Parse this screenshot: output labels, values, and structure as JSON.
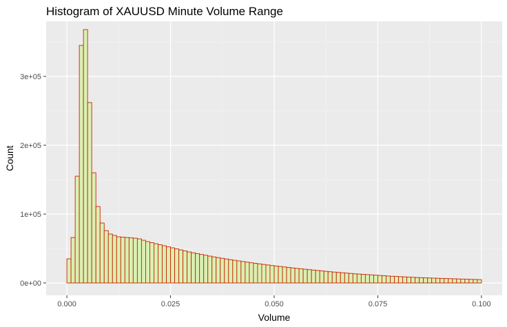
{
  "chart_data": {
    "type": "bar",
    "title": "Histogram of XAUUSD Minute Volume Range",
    "xlabel": "Volume",
    "ylabel": "Count",
    "xlim": [
      -0.005,
      0.105
    ],
    "ylim": [
      -18000,
      380000
    ],
    "x_ticks": [
      0.0,
      0.025,
      0.05,
      0.075,
      0.1
    ],
    "x_tick_labels": [
      "0.000",
      "0.025",
      "0.050",
      "0.075",
      "0.100"
    ],
    "y_ticks": [
      0,
      100000,
      200000,
      300000
    ],
    "y_tick_labels": [
      "0e+00",
      "1e+05",
      "2e+05",
      "3e+05"
    ],
    "grid": true,
    "legend": "none",
    "bin_width": 0.001,
    "bins_start": 0.0,
    "values": [
      35000,
      66000,
      155000,
      345000,
      368000,
      262000,
      160000,
      111000,
      87000,
      76000,
      71000,
      69000,
      67000,
      66500,
      66000,
      65500,
      65000,
      64000,
      62000,
      60000,
      58500,
      57000,
      55500,
      54000,
      52500,
      51000,
      49500,
      48000,
      46500,
      45000,
      43800,
      42600,
      41400,
      40200,
      39000,
      37800,
      36800,
      35800,
      34800,
      33800,
      32900,
      32000,
      31100,
      30200,
      29300,
      28500,
      27700,
      26900,
      26100,
      25300,
      24600,
      23900,
      23200,
      22500,
      21800,
      21100,
      20500,
      19900,
      19300,
      18700,
      18100,
      17500,
      16900,
      16300,
      15800,
      15300,
      14800,
      14300,
      13800,
      13300,
      12900,
      12500,
      12100,
      11700,
      11300,
      10900,
      10500,
      10100,
      9700,
      9400,
      9100,
      8800,
      8500,
      8200,
      7900,
      7600,
      7400,
      7200,
      7000,
      6800,
      6600,
      6400,
      6200,
      6000,
      5800,
      5600,
      5400,
      5200,
      5000,
      4800
    ],
    "colors": {
      "fill": "#d9f0b3",
      "outline": "#cc2200",
      "panel": "#ebebeb",
      "grid_major": "#ffffff",
      "grid_minor": "#f5f5f5"
    }
  }
}
